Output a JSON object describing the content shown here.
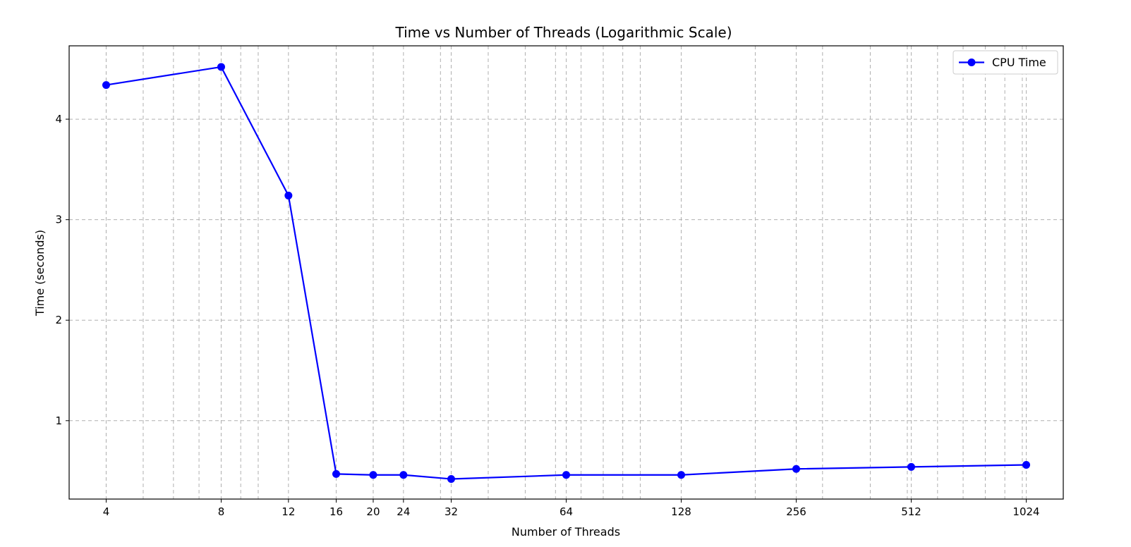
{
  "chart_data": {
    "type": "line",
    "title": "Time vs Number of Threads (Logarithmic Scale)",
    "xlabel": "Number of Threads",
    "ylabel": "Time (seconds)",
    "xscale": "log",
    "x": [
      4,
      8,
      12,
      16,
      20,
      24,
      32,
      64,
      128,
      256,
      512,
      1024
    ],
    "x_tick_labels": [
      "4",
      "8",
      "12",
      "16",
      "20",
      "24",
      "32",
      "64",
      "128",
      "256",
      "512",
      "1024"
    ],
    "y_ticks": [
      1,
      2,
      3,
      4
    ],
    "y_tick_labels": [
      "1",
      "2",
      "3",
      "4"
    ],
    "xlim": [
      3.2,
      1280
    ],
    "ylim": [
      0.22,
      4.73
    ],
    "grid": true,
    "legend_position": "top-right",
    "series": [
      {
        "name": "CPU Time",
        "color": "#0000ff",
        "marker": "circle",
        "values": [
          4.34,
          4.52,
          3.24,
          0.47,
          0.46,
          0.46,
          0.42,
          0.46,
          0.46,
          0.52,
          0.54,
          0.56
        ]
      }
    ]
  }
}
